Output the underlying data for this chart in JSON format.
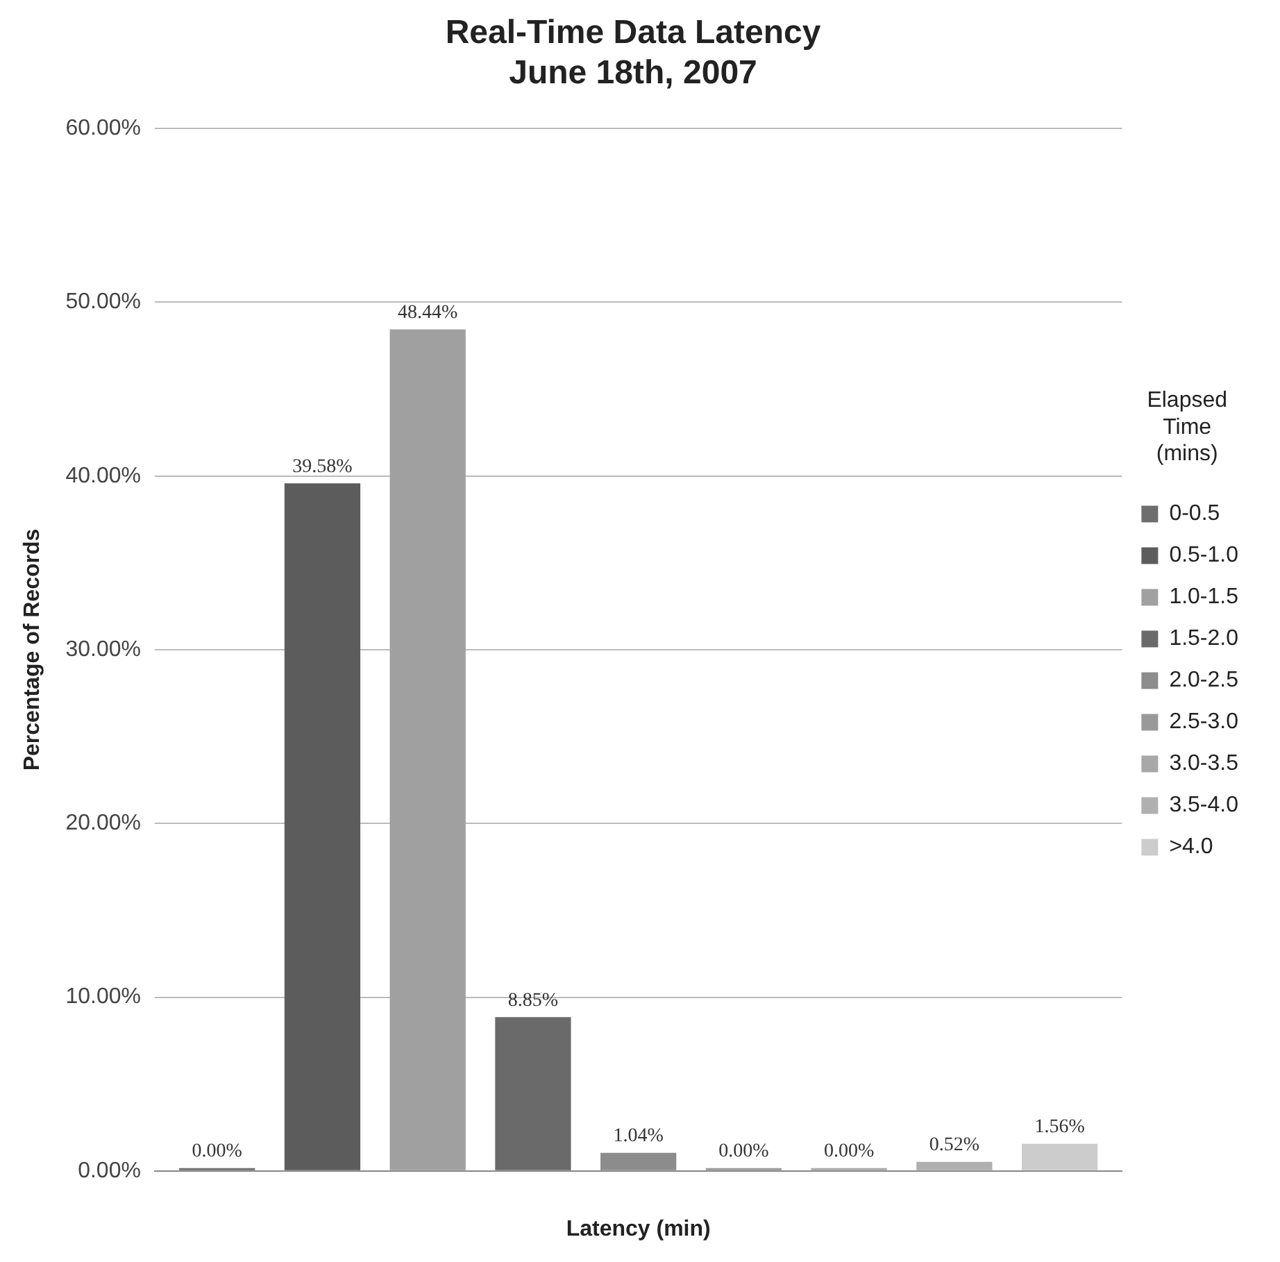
{
  "chart_data": {
    "type": "bar",
    "title": "Real-Time Data Latency",
    "subtitle": "June 18th, 2007",
    "xlabel": "Latency (min)",
    "ylabel": "Percentage of Records",
    "legend_title": "Elapsed Time (mins)",
    "legend": "right",
    "grid": "y",
    "categories": [
      null
    ],
    "ylim": [
      0,
      60
    ],
    "yticks": [
      {
        "value": 0,
        "label": "0.00%"
      },
      {
        "value": 10,
        "label": "10.00%"
      },
      {
        "value": 20,
        "label": "20.00%"
      },
      {
        "value": 30,
        "label": "30.00%"
      },
      {
        "value": 40,
        "label": "40.00%"
      },
      {
        "value": 50,
        "label": "50.00%"
      },
      {
        "value": 60,
        "label": "60.00%"
      }
    ],
    "series": [
      {
        "name": "0-0.5",
        "color": "#6e6e6e",
        "values": [
          0
        ],
        "value_labels": [
          "0.00%"
        ]
      },
      {
        "name": "0.5-1.0",
        "color": "#5c5c5c",
        "values": [
          39.58
        ],
        "value_labels": [
          "39.58%"
        ]
      },
      {
        "name": "1.0-1.5",
        "color": "#a0a0a0",
        "values": [
          48.44
        ],
        "value_labels": [
          "48.44%"
        ]
      },
      {
        "name": "1.5-2.0",
        "color": "#6a6a6a",
        "values": [
          8.85
        ],
        "value_labels": [
          "8.85%"
        ]
      },
      {
        "name": "2.0-2.5",
        "color": "#8c8c8c",
        "values": [
          1.04
        ],
        "value_labels": [
          "1.04%"
        ]
      },
      {
        "name": "2.5-3.0",
        "color": "#999999",
        "values": [
          0
        ],
        "value_labels": [
          "0.00%"
        ]
      },
      {
        "name": "3.0-3.5",
        "color": "#a8a8a8",
        "values": [
          0
        ],
        "value_labels": [
          "0.00%"
        ]
      },
      {
        "name": "3.5-4.0",
        "color": "#b0b0b0",
        "values": [
          0.52
        ],
        "value_labels": [
          "0.52%"
        ]
      },
      {
        "name": ">4.0",
        "color": "#cccccc",
        "values": [
          1.56
        ],
        "value_labels": [
          "1.56%"
        ]
      }
    ]
  }
}
